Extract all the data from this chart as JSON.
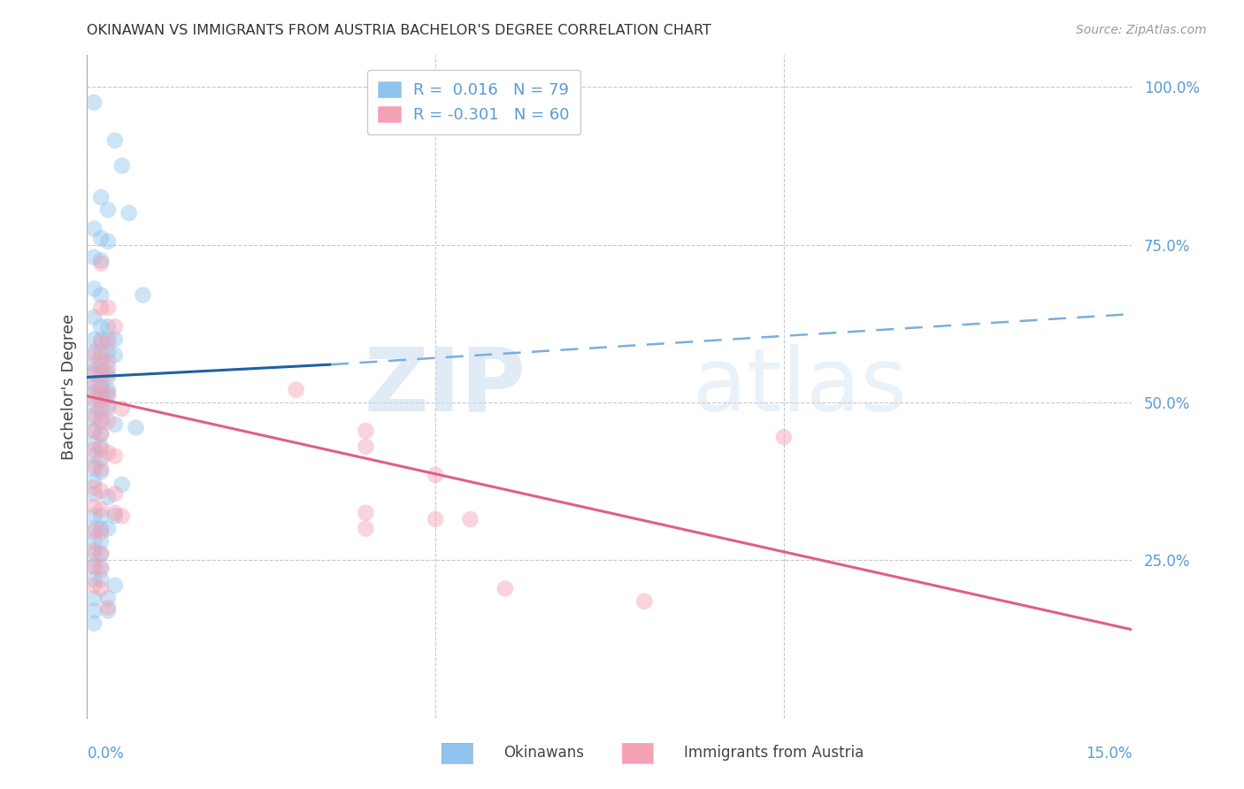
{
  "title": "OKINAWAN VS IMMIGRANTS FROM AUSTRIA BACHELOR'S DEGREE CORRELATION CHART",
  "source": "Source: ZipAtlas.com",
  "ylabel": "Bachelor's Degree",
  "right_yticks": [
    0.0,
    0.25,
    0.5,
    0.75,
    1.0
  ],
  "right_yticklabels": [
    "",
    "25.0%",
    "50.0%",
    "75.0%",
    "100.0%"
  ],
  "legend_entries": [
    {
      "label": "Okinawans",
      "R": "0.016",
      "N": "79",
      "color": "#8EC4ED"
    },
    {
      "label": "Immigrants from Austria",
      "R": "-0.301",
      "N": "60",
      "color": "#F4A0B5"
    }
  ],
  "xlim": [
    0.0,
    0.15
  ],
  "ylim": [
    0.0,
    1.05
  ],
  "watermark_zip": "ZIP",
  "watermark_atlas": "atlas",
  "background_color": "#FFFFFF",
  "grid_color": "#BBBBBB",
  "title_color": "#333333",
  "axis_color": "#5B9BD5",
  "marker_size": 180,
  "marker_alpha": 0.45,
  "blue_scatter": [
    [
      0.001,
      0.975
    ],
    [
      0.004,
      0.915
    ],
    [
      0.005,
      0.875
    ],
    [
      0.002,
      0.825
    ],
    [
      0.003,
      0.805
    ],
    [
      0.006,
      0.8
    ],
    [
      0.001,
      0.775
    ],
    [
      0.002,
      0.76
    ],
    [
      0.003,
      0.755
    ],
    [
      0.001,
      0.73
    ],
    [
      0.002,
      0.725
    ],
    [
      0.001,
      0.68
    ],
    [
      0.002,
      0.67
    ],
    [
      0.008,
      0.67
    ],
    [
      0.001,
      0.635
    ],
    [
      0.002,
      0.62
    ],
    [
      0.003,
      0.62
    ],
    [
      0.001,
      0.6
    ],
    [
      0.002,
      0.6
    ],
    [
      0.003,
      0.6
    ],
    [
      0.004,
      0.6
    ],
    [
      0.001,
      0.58
    ],
    [
      0.002,
      0.58
    ],
    [
      0.003,
      0.58
    ],
    [
      0.004,
      0.575
    ],
    [
      0.001,
      0.56
    ],
    [
      0.002,
      0.56
    ],
    [
      0.003,
      0.555
    ],
    [
      0.001,
      0.545
    ],
    [
      0.002,
      0.54
    ],
    [
      0.003,
      0.54
    ],
    [
      0.001,
      0.53
    ],
    [
      0.002,
      0.525
    ],
    [
      0.003,
      0.52
    ],
    [
      0.001,
      0.515
    ],
    [
      0.002,
      0.51
    ],
    [
      0.003,
      0.51
    ],
    [
      0.001,
      0.495
    ],
    [
      0.002,
      0.49
    ],
    [
      0.003,
      0.49
    ],
    [
      0.001,
      0.475
    ],
    [
      0.002,
      0.47
    ],
    [
      0.004,
      0.465
    ],
    [
      0.001,
      0.455
    ],
    [
      0.002,
      0.45
    ],
    [
      0.001,
      0.435
    ],
    [
      0.002,
      0.43
    ],
    [
      0.001,
      0.415
    ],
    [
      0.002,
      0.41
    ],
    [
      0.001,
      0.395
    ],
    [
      0.002,
      0.39
    ],
    [
      0.001,
      0.375
    ],
    [
      0.005,
      0.37
    ],
    [
      0.001,
      0.355
    ],
    [
      0.003,
      0.35
    ],
    [
      0.001,
      0.32
    ],
    [
      0.002,
      0.32
    ],
    [
      0.004,
      0.32
    ],
    [
      0.001,
      0.3
    ],
    [
      0.002,
      0.3
    ],
    [
      0.003,
      0.3
    ],
    [
      0.001,
      0.28
    ],
    [
      0.002,
      0.28
    ],
    [
      0.001,
      0.26
    ],
    [
      0.002,
      0.26
    ],
    [
      0.001,
      0.24
    ],
    [
      0.002,
      0.24
    ],
    [
      0.001,
      0.22
    ],
    [
      0.002,
      0.22
    ],
    [
      0.004,
      0.21
    ],
    [
      0.001,
      0.19
    ],
    [
      0.003,
      0.19
    ],
    [
      0.001,
      0.17
    ],
    [
      0.003,
      0.17
    ],
    [
      0.001,
      0.15
    ],
    [
      0.007,
      0.46
    ]
  ],
  "pink_scatter": [
    [
      0.002,
      0.72
    ],
    [
      0.002,
      0.65
    ],
    [
      0.003,
      0.65
    ],
    [
      0.004,
      0.62
    ],
    [
      0.002,
      0.595
    ],
    [
      0.003,
      0.595
    ],
    [
      0.001,
      0.575
    ],
    [
      0.002,
      0.57
    ],
    [
      0.003,
      0.565
    ],
    [
      0.001,
      0.55
    ],
    [
      0.002,
      0.545
    ],
    [
      0.003,
      0.545
    ],
    [
      0.001,
      0.525
    ],
    [
      0.002,
      0.52
    ],
    [
      0.003,
      0.515
    ],
    [
      0.001,
      0.505
    ],
    [
      0.002,
      0.5
    ],
    [
      0.003,
      0.495
    ],
    [
      0.005,
      0.49
    ],
    [
      0.001,
      0.48
    ],
    [
      0.002,
      0.475
    ],
    [
      0.003,
      0.47
    ],
    [
      0.001,
      0.455
    ],
    [
      0.002,
      0.45
    ],
    [
      0.001,
      0.425
    ],
    [
      0.002,
      0.425
    ],
    [
      0.003,
      0.42
    ],
    [
      0.004,
      0.415
    ],
    [
      0.001,
      0.4
    ],
    [
      0.002,
      0.395
    ],
    [
      0.001,
      0.365
    ],
    [
      0.002,
      0.36
    ],
    [
      0.004,
      0.355
    ],
    [
      0.001,
      0.335
    ],
    [
      0.002,
      0.33
    ],
    [
      0.004,
      0.325
    ],
    [
      0.005,
      0.32
    ],
    [
      0.001,
      0.295
    ],
    [
      0.002,
      0.295
    ],
    [
      0.001,
      0.265
    ],
    [
      0.002,
      0.26
    ],
    [
      0.001,
      0.24
    ],
    [
      0.002,
      0.235
    ],
    [
      0.001,
      0.21
    ],
    [
      0.002,
      0.205
    ],
    [
      0.003,
      0.175
    ],
    [
      0.03,
      0.52
    ],
    [
      0.04,
      0.455
    ],
    [
      0.04,
      0.43
    ],
    [
      0.04,
      0.325
    ],
    [
      0.04,
      0.3
    ],
    [
      0.05,
      0.385
    ],
    [
      0.05,
      0.315
    ],
    [
      0.055,
      0.315
    ],
    [
      0.06,
      0.205
    ],
    [
      0.08,
      0.185
    ],
    [
      0.1,
      0.445
    ]
  ],
  "blue_line": {
    "x0": 0.0,
    "x1": 0.035,
    "y0": 0.54,
    "y1": 0.56
  },
  "blue_dash_line": {
    "x0": 0.035,
    "x1": 0.15,
    "y0": 0.56,
    "y1": 0.64
  },
  "pink_line": {
    "x0": 0.0,
    "x1": 0.15,
    "y0": 0.51,
    "y1": 0.14
  }
}
